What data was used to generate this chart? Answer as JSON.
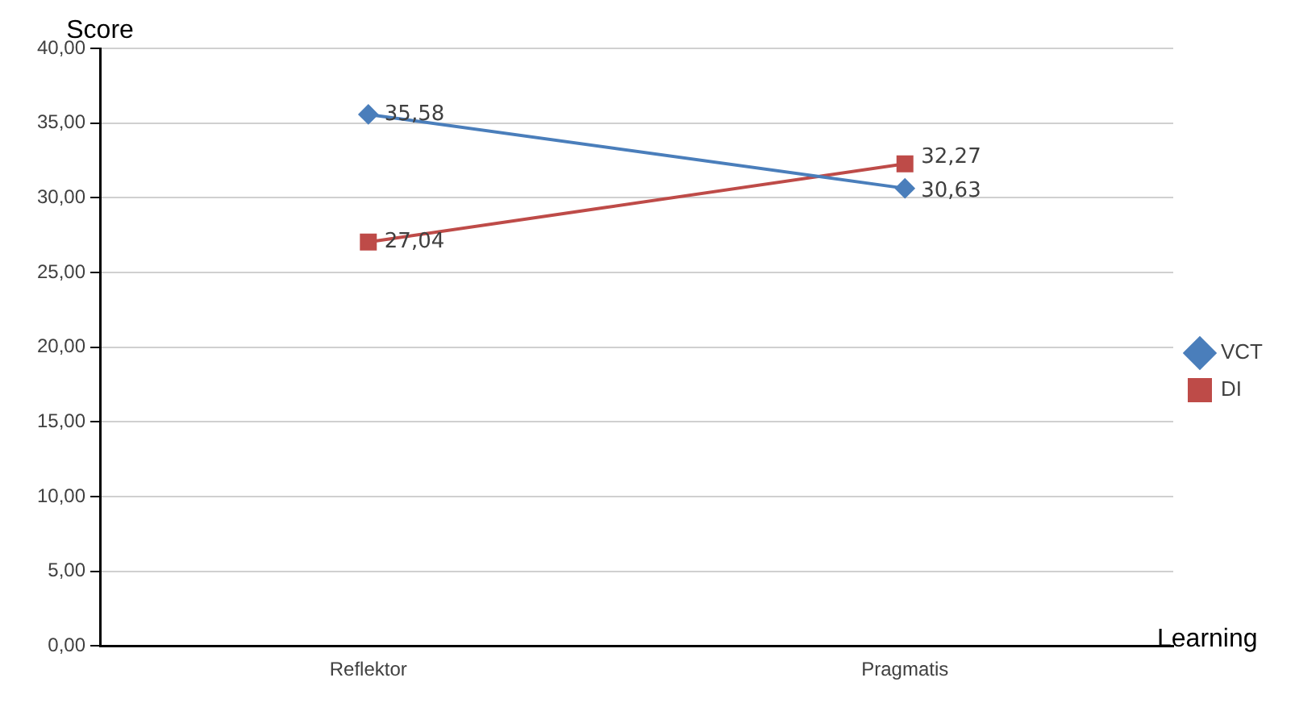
{
  "chart_data": {
    "type": "line",
    "xlabel": "Learning",
    "ylabel": "Score",
    "categories": [
      "Reflektor",
      "Pragmatis"
    ],
    "series": [
      {
        "name": "VCT",
        "color": "#4a7ebb",
        "values": [
          35.58,
          30.63
        ],
        "marker": "diamond",
        "value_labels": [
          "35,58",
          "30,63"
        ]
      },
      {
        "name": "DI",
        "color": "#be4b48",
        "values": [
          27.04,
          32.27
        ],
        "marker": "square",
        "value_labels": [
          "27,04",
          "32,27"
        ]
      }
    ],
    "ylim": [
      0,
      40
    ],
    "yticks": [
      {
        "value": 0,
        "label": "0,00"
      },
      {
        "value": 5,
        "label": "5,00"
      },
      {
        "value": 10,
        "label": "10,00"
      },
      {
        "value": 15,
        "label": "15,00"
      },
      {
        "value": 20,
        "label": "20,00"
      },
      {
        "value": 25,
        "label": "25,00"
      },
      {
        "value": 30,
        "label": "30,00"
      },
      {
        "value": 35,
        "label": "35,00"
      },
      {
        "value": 40,
        "label": "40,00"
      }
    ],
    "grid": "y",
    "legend": "right",
    "line_style": "solid"
  }
}
